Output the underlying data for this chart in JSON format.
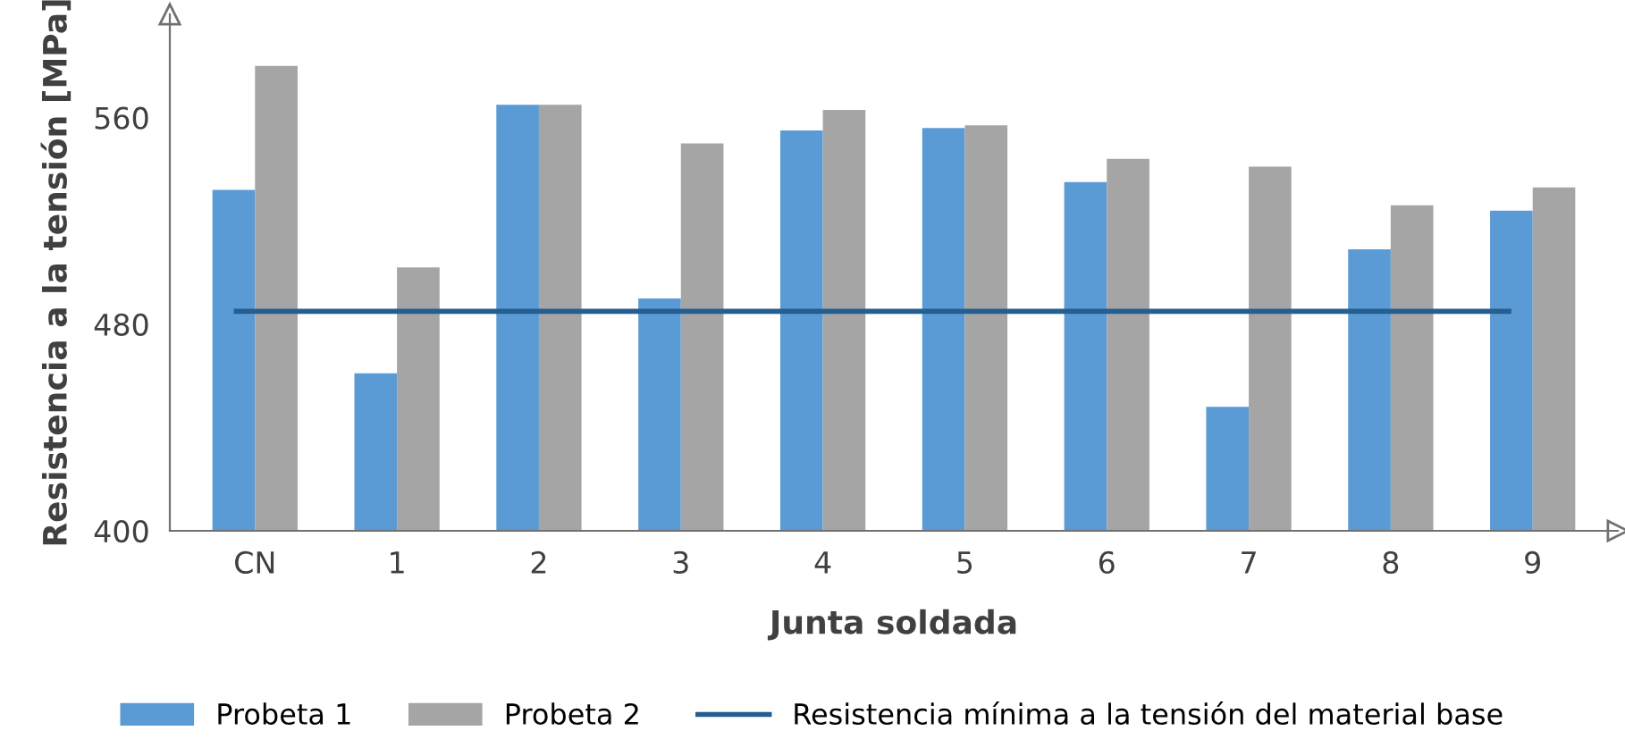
{
  "chart_data": {
    "type": "bar",
    "xlabel": "Junta soldada",
    "ylabel": "Resistencia a la tensión [MPa]",
    "categories": [
      "CN",
      "1",
      "2",
      "3",
      "4",
      "5",
      "6",
      "7",
      "8",
      "9"
    ],
    "series": [
      {
        "name": "Probeta 1",
        "color": "#5b9bd5",
        "values": [
          532,
          461,
          565,
          490,
          555,
          556,
          535,
          448,
          509,
          524
        ]
      },
      {
        "name": "Probeta 2",
        "color": "#a5a5a5",
        "values": [
          580,
          502,
          565,
          550,
          563,
          557,
          544,
          541,
          526,
          533
        ]
      }
    ],
    "ref_lines": [
      {
        "axis": "y",
        "value": 485,
        "label": "Resistencia mínima a la tensión del material base",
        "color": "#255e91"
      }
    ],
    "ylim": [
      400,
      600
    ],
    "yticks": [
      400,
      480,
      560
    ],
    "grid": false,
    "legend": "bottom"
  }
}
